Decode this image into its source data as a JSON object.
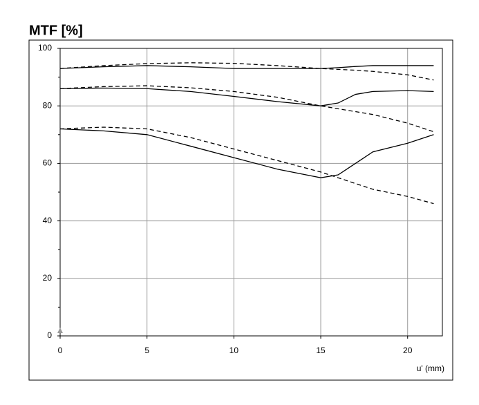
{
  "chart_data": {
    "type": "line",
    "title": "MTF [%]",
    "x_label": "u' (mm)",
    "x": [
      0,
      2.5,
      5,
      7.5,
      10,
      12.5,
      15,
      16,
      17,
      18,
      20,
      21.5
    ],
    "series": [
      {
        "color": "#000000",
        "style": "solid",
        "values": [
          93,
          93.6,
          94,
          93.6,
          93,
          93,
          93,
          93.3,
          93.7,
          94,
          94,
          94
        ]
      },
      {
        "color": "#000000",
        "style": "dashed",
        "values": [
          93,
          94,
          94.7,
          95,
          94.8,
          94,
          93,
          92.7,
          92.4,
          92,
          90.8,
          89
        ]
      },
      {
        "color": "#000000",
        "style": "solid",
        "values": [
          86,
          86.2,
          86,
          85,
          83.3,
          81.5,
          80,
          81,
          84,
          85,
          85.3,
          85
        ]
      },
      {
        "color": "#000000",
        "style": "dashed",
        "values": [
          86,
          86.7,
          87,
          86.3,
          85,
          83,
          80,
          79,
          78,
          77,
          74,
          71
        ]
      },
      {
        "color": "#000000",
        "style": "solid",
        "values": [
          72,
          71.3,
          70,
          66,
          62,
          58,
          55,
          56,
          60,
          64,
          67,
          70
        ]
      },
      {
        "color": "#000000",
        "style": "dashed",
        "values": [
          72,
          72.6,
          72,
          69,
          65,
          61,
          57,
          55,
          53,
          51,
          48.5,
          46
        ]
      }
    ],
    "xlim": [
      0,
      22
    ],
    "ylim": [
      0,
      100
    ],
    "xticks": [
      0,
      5,
      10,
      15,
      20
    ],
    "yticks": [
      0,
      20,
      40,
      60,
      80,
      100
    ],
    "y_minor_ticks": [
      10,
      30,
      50,
      70,
      90
    ],
    "grid": true
  }
}
